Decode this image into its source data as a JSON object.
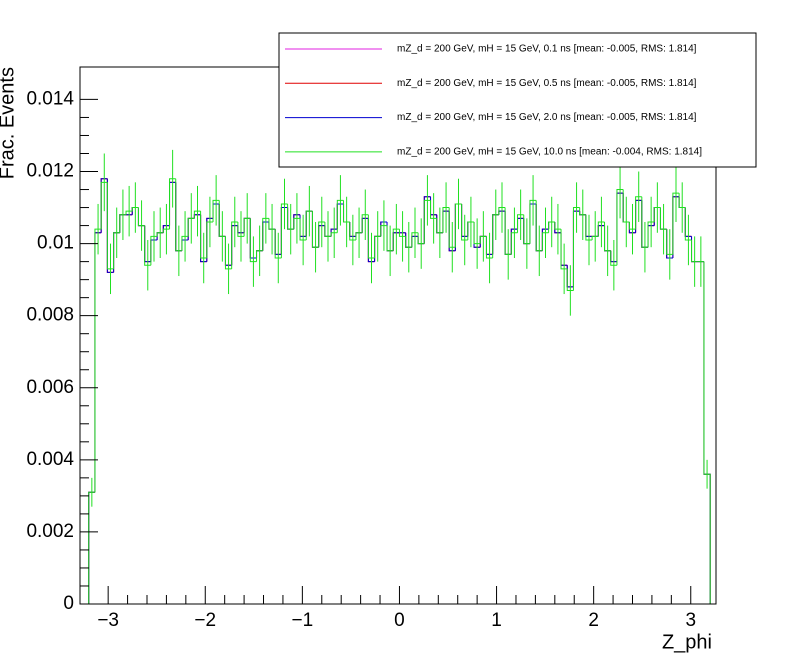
{
  "chart_data": {
    "type": "histogram",
    "ylabel": "Frac. Events",
    "xlabel": "Z_phi",
    "xlim": [
      -3.29,
      3.26
    ],
    "ylim": [
      0,
      0.0149
    ],
    "xticks": [
      {
        "value": -3,
        "label": "−3"
      },
      {
        "value": -2,
        "label": "−2"
      },
      {
        "value": -1,
        "label": "−1"
      },
      0,
      1,
      2,
      3
    ],
    "yticks": [
      0,
      0.002,
      0.004,
      0.006,
      0.008,
      0.01,
      0.012,
      0.014
    ],
    "bins": [
      -3.2,
      -3.136,
      -3.072,
      -3.008,
      -2.944,
      -2.88,
      -2.816,
      -2.752,
      -2.688,
      -2.624,
      -2.56,
      -2.496,
      -2.432,
      -2.368,
      -2.304,
      -2.24,
      -2.176,
      -2.112,
      -2.048,
      -1.984,
      -1.92,
      -1.856,
      -1.792,
      -1.728,
      -1.664,
      -1.6,
      -1.536,
      -1.472,
      -1.408,
      -1.344,
      -1.28,
      -1.216,
      -1.152,
      -1.088,
      -1.024,
      -0.96,
      -0.896,
      -0.832,
      -0.768,
      -0.704,
      -0.64,
      -0.576,
      -0.512,
      -0.448,
      -0.384,
      -0.32,
      -0.256,
      -0.192,
      -0.128,
      -0.064,
      0,
      0.064,
      0.128,
      0.192,
      0.256,
      0.32,
      0.384,
      0.448,
      0.512,
      0.576,
      0.64,
      0.704,
      0.768,
      0.832,
      0.896,
      0.96,
      1.024,
      1.088,
      1.152,
      1.216,
      1.28,
      1.344,
      1.408,
      1.472,
      1.536,
      1.6,
      1.664,
      1.728,
      1.792,
      1.856,
      1.92,
      1.984,
      2.048,
      2.112,
      2.176,
      2.24,
      2.304,
      2.368,
      2.432,
      2.496,
      2.56,
      2.624,
      2.688,
      2.752,
      2.816,
      2.88,
      2.944,
      3.008,
      3.072,
      3.136,
      3.2
    ],
    "legend": "top-right",
    "series": [
      {
        "name": "mZ_d = 200 GeV, mH = 15 GeV, 0.1 ns [mean: -0.005, RMS: 1.814]",
        "color": "#e020e0",
        "values": [
          0.0031,
          0.0103,
          0.0118,
          0.0092,
          0.0103,
          0.0108,
          0.0108,
          0.011,
          0.0105,
          0.0095,
          0.0101,
          0.0103,
          0.0105,
          0.0117,
          0.0098,
          0.0101,
          0.0107,
          0.0108,
          0.0095,
          0.0107,
          0.0111,
          0.0102,
          0.0094,
          0.0105,
          0.0103,
          0.0107,
          0.0096,
          0.0098,
          0.0106,
          0.0104,
          0.0097,
          0.011,
          0.0104,
          0.0108,
          0.0102,
          0.0109,
          0.0099,
          0.0105,
          0.0102,
          0.0104,
          0.0111,
          0.0106,
          0.0102,
          0.0103,
          0.0107,
          0.0095,
          0.0102,
          0.0106,
          0.0098,
          0.0103,
          0.0103,
          0.0099,
          0.0102,
          0.01,
          0.0113,
          0.0108,
          0.0103,
          0.0109,
          0.0098,
          0.0111,
          0.0102,
          0.0106,
          0.0099,
          0.0102,
          0.0097,
          0.0108,
          0.0109,
          0.0097,
          0.0104,
          0.0107,
          0.01,
          0.0111,
          0.0098,
          0.0104,
          0.0106,
          0.0103,
          0.0094,
          0.0088,
          0.0109,
          0.0108,
          0.0102,
          0.0102,
          0.0105,
          0.0098,
          0.0095,
          0.0114,
          0.0106,
          0.0103,
          0.0112,
          0.0099,
          0.0105,
          0.011,
          0.0104,
          0.0096,
          0.0113,
          0.011,
          0.0102,
          0.0095,
          0.0095,
          0.0036
        ]
      },
      {
        "name": "mZ_d = 200 GeV, mH = 15 GeV, 0.5 ns [mean: -0.005, RMS: 1.814]",
        "color": "#e00000",
        "values": [
          0.0031,
          0.0103,
          0.0118,
          0.0092,
          0.0103,
          0.0108,
          0.0108,
          0.011,
          0.0105,
          0.0095,
          0.0101,
          0.0103,
          0.0105,
          0.0117,
          0.0098,
          0.0101,
          0.0107,
          0.0108,
          0.0095,
          0.0107,
          0.0111,
          0.0102,
          0.0094,
          0.0105,
          0.0103,
          0.0107,
          0.0096,
          0.0098,
          0.0106,
          0.0104,
          0.0097,
          0.011,
          0.0104,
          0.0108,
          0.0102,
          0.0109,
          0.0099,
          0.0105,
          0.0102,
          0.0104,
          0.0111,
          0.0106,
          0.0102,
          0.0103,
          0.0107,
          0.0095,
          0.0102,
          0.0106,
          0.0098,
          0.0103,
          0.0103,
          0.0099,
          0.0102,
          0.01,
          0.0113,
          0.0108,
          0.0103,
          0.0109,
          0.0098,
          0.0111,
          0.0102,
          0.0106,
          0.0099,
          0.0102,
          0.0097,
          0.0108,
          0.0109,
          0.0097,
          0.0104,
          0.0107,
          0.01,
          0.0111,
          0.0098,
          0.0104,
          0.0106,
          0.0103,
          0.0094,
          0.0088,
          0.0109,
          0.0108,
          0.0102,
          0.0102,
          0.0105,
          0.0098,
          0.0095,
          0.0114,
          0.0106,
          0.0103,
          0.0112,
          0.0099,
          0.0105,
          0.011,
          0.0104,
          0.0096,
          0.0113,
          0.011,
          0.0102,
          0.0095,
          0.0095,
          0.0036
        ]
      },
      {
        "name": "mZ_d = 200 GeV, mH = 15 GeV, 2.0 ns [mean: -0.005, RMS: 1.814]",
        "color": "#0000d0",
        "values": [
          0.0031,
          0.0103,
          0.0118,
          0.0092,
          0.0103,
          0.0108,
          0.0108,
          0.011,
          0.0105,
          0.0095,
          0.0101,
          0.0103,
          0.0105,
          0.0117,
          0.0098,
          0.0101,
          0.0107,
          0.0108,
          0.0095,
          0.0107,
          0.0111,
          0.0102,
          0.0094,
          0.0105,
          0.0103,
          0.0107,
          0.0096,
          0.0098,
          0.0106,
          0.0104,
          0.0097,
          0.011,
          0.0104,
          0.0108,
          0.0102,
          0.0109,
          0.0099,
          0.0105,
          0.0102,
          0.0104,
          0.0111,
          0.0106,
          0.0102,
          0.0103,
          0.0107,
          0.0095,
          0.0102,
          0.0106,
          0.0098,
          0.0103,
          0.0103,
          0.0099,
          0.0102,
          0.01,
          0.0113,
          0.0108,
          0.0103,
          0.0109,
          0.0098,
          0.0111,
          0.0102,
          0.0106,
          0.0099,
          0.0102,
          0.0097,
          0.0108,
          0.0109,
          0.0097,
          0.0104,
          0.0107,
          0.01,
          0.0111,
          0.0098,
          0.0104,
          0.0106,
          0.0103,
          0.0094,
          0.0088,
          0.0109,
          0.0108,
          0.0102,
          0.0102,
          0.0105,
          0.0098,
          0.0095,
          0.0114,
          0.0106,
          0.0103,
          0.0112,
          0.0099,
          0.0105,
          0.011,
          0.0104,
          0.0096,
          0.0113,
          0.011,
          0.0102,
          0.0095,
          0.0095,
          0.0036
        ]
      },
      {
        "name": "mZ_d = 200 GeV, mH = 15 GeV, 10.0 ns [mean: -0.004, RMS: 1.814]",
        "color": "#20e020",
        "values": [
          0.0031,
          0.0104,
          0.0117,
          0.0093,
          0.0103,
          0.0108,
          0.0109,
          0.011,
          0.0105,
          0.0094,
          0.0102,
          0.0103,
          0.0104,
          0.0118,
          0.0098,
          0.0102,
          0.0107,
          0.0109,
          0.0096,
          0.0106,
          0.0112,
          0.0102,
          0.0093,
          0.0106,
          0.0102,
          0.0107,
          0.0095,
          0.0098,
          0.0107,
          0.0104,
          0.0096,
          0.0111,
          0.0104,
          0.0107,
          0.0101,
          0.0109,
          0.0099,
          0.0106,
          0.0102,
          0.0103,
          0.0112,
          0.0106,
          0.0101,
          0.0103,
          0.0108,
          0.0096,
          0.0102,
          0.0105,
          0.0098,
          0.0104,
          0.0102,
          0.0099,
          0.0103,
          0.01,
          0.0112,
          0.0107,
          0.0103,
          0.011,
          0.0099,
          0.0111,
          0.0101,
          0.0106,
          0.01,
          0.0102,
          0.0096,
          0.0108,
          0.011,
          0.0097,
          0.0103,
          0.0108,
          0.01,
          0.0112,
          0.0098,
          0.0103,
          0.0106,
          0.0104,
          0.0093,
          0.0087,
          0.011,
          0.0108,
          0.0101,
          0.0102,
          0.0106,
          0.0098,
          0.0094,
          0.0115,
          0.0106,
          0.0104,
          0.0113,
          0.0099,
          0.0106,
          0.011,
          0.0104,
          0.0097,
          0.0114,
          0.011,
          0.0101,
          0.0095,
          0.0095,
          0.0036
        ],
        "errors": [
          0.0004,
          0.0007,
          0.0008,
          0.0007,
          0.0007,
          0.0007,
          0.0007,
          0.0007,
          0.0007,
          0.0007,
          0.0007,
          0.0007,
          0.0007,
          0.0008,
          0.0007,
          0.0007,
          0.0007,
          0.0007,
          0.0007,
          0.0007,
          0.0007,
          0.0007,
          0.0007,
          0.0007,
          0.0007,
          0.0007,
          0.0007,
          0.0007,
          0.0007,
          0.0007,
          0.0007,
          0.0007,
          0.0007,
          0.0007,
          0.0007,
          0.0007,
          0.0007,
          0.0007,
          0.0007,
          0.0007,
          0.0007,
          0.0007,
          0.0007,
          0.0007,
          0.0007,
          0.0007,
          0.0007,
          0.0007,
          0.0007,
          0.0007,
          0.0007,
          0.0007,
          0.0007,
          0.0007,
          0.0007,
          0.0007,
          0.0007,
          0.0007,
          0.0007,
          0.0007,
          0.0007,
          0.0007,
          0.0007,
          0.0007,
          0.0007,
          0.0007,
          0.0007,
          0.0007,
          0.0007,
          0.0007,
          0.0007,
          0.0007,
          0.0007,
          0.0007,
          0.0007,
          0.0007,
          0.0007,
          0.0007,
          0.0007,
          0.0007,
          0.0007,
          0.0007,
          0.0007,
          0.0007,
          0.0007,
          0.0008,
          0.0007,
          0.0007,
          0.0007,
          0.0007,
          0.0007,
          0.0007,
          0.0007,
          0.0007,
          0.0008,
          0.0007,
          0.0007,
          0.0007,
          0.0007,
          0.0004
        ]
      }
    ]
  }
}
